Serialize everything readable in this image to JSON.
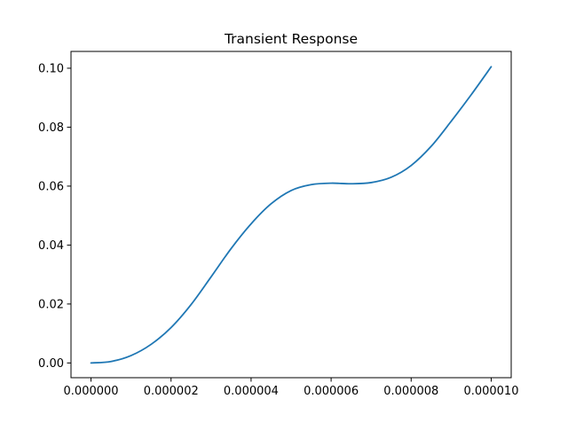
{
  "chart_data": {
    "type": "line",
    "title": "Transient Response",
    "xlabel": "",
    "ylabel": "",
    "xlim": [
      -5e-07,
      1.05e-05
    ],
    "ylim": [
      -0.005,
      0.1057
    ],
    "x_ticks": [
      0,
      2e-06,
      4e-06,
      6e-06,
      8e-06,
      1e-05
    ],
    "x_tick_labels": [
      "0.000000",
      "0.000002",
      "0.000004",
      "0.000006",
      "0.000008",
      "0.000010"
    ],
    "y_ticks": [
      0,
      0.02,
      0.04,
      0.06,
      0.08,
      0.1
    ],
    "y_tick_labels": [
      "0.00",
      "0.02",
      "0.04",
      "0.06",
      "0.08",
      "0.10"
    ],
    "grid": false,
    "legend": "none",
    "series": [
      {
        "color": "#1f77b4",
        "x": [
          0,
          5e-07,
          1e-06,
          1.5e-06,
          2e-06,
          2.5e-06,
          3e-06,
          3.5e-06,
          4e-06,
          4.5e-06,
          5e-06,
          5.5e-06,
          6e-06,
          6.5e-06,
          7e-06,
          7.5e-06,
          8e-06,
          8.5e-06,
          9e-06,
          9.5e-06,
          1e-05
        ],
        "y": [
          0,
          0.0005,
          0.0025,
          0.0063,
          0.012,
          0.0198,
          0.0292,
          0.0388,
          0.0472,
          0.054,
          0.0585,
          0.0605,
          0.061,
          0.0608,
          0.0612,
          0.063,
          0.067,
          0.0735,
          0.082,
          0.091,
          0.1005
        ]
      }
    ]
  }
}
